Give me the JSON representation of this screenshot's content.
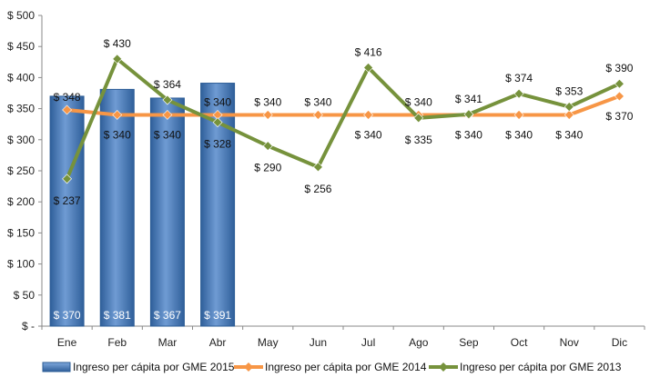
{
  "chart_data": {
    "type": "bar+line",
    "categories": [
      "Ene",
      "Feb",
      "Mar",
      "Abr",
      "May",
      "Jun",
      "Jul",
      "Ago",
      "Sep",
      "Oct",
      "Nov",
      "Dic"
    ],
    "ylim": [
      0,
      500
    ],
    "ytick_values": [
      0,
      50,
      100,
      150,
      200,
      250,
      300,
      350,
      400,
      450,
      500
    ],
    "ytick_labels": [
      "$ -",
      "$ 50",
      "$ 100",
      "$ 150",
      "$ 200",
      "$ 250",
      "$ 300",
      "$ 350",
      "$ 400",
      "$ 450",
      "$ 500"
    ],
    "grid": false,
    "legend_position": "bottom",
    "series": [
      {
        "name": "Ingreso per cápita por GME 2015",
        "type": "bar",
        "color": "#4f81bd",
        "values": [
          370,
          381,
          367,
          391,
          null,
          null,
          null,
          null,
          null,
          null,
          null,
          null
        ],
        "labels": [
          "$ 370",
          "$ 381",
          "$ 367",
          "$ 391",
          "",
          "",
          "",
          "",
          "",
          "",
          "",
          ""
        ]
      },
      {
        "name": "Ingreso per cápita por GME 2014",
        "type": "line",
        "color": "#f79646",
        "values": [
          348,
          340,
          340,
          340,
          340,
          340,
          340,
          340,
          340,
          340,
          340,
          370
        ],
        "labels": [
          "$ 348",
          "$ 340",
          "$ 340",
          "$ 340",
          "$ 340",
          "$ 340",
          "$ 340",
          "$ 340",
          "$ 340",
          "$ 340",
          "$ 340",
          "$ 370"
        ]
      },
      {
        "name": "Ingreso per cápita por GME 2013",
        "type": "line",
        "color": "#76923c",
        "values": [
          237,
          430,
          364,
          328,
          290,
          256,
          416,
          335,
          341,
          374,
          353,
          390
        ],
        "labels": [
          "$ 237",
          "$ 430",
          "$ 364",
          "$ 328",
          "$ 290",
          "$ 256",
          "$ 416",
          "$ 335",
          "$ 341",
          "$ 374",
          "$ 353",
          "$ 390"
        ]
      }
    ]
  }
}
